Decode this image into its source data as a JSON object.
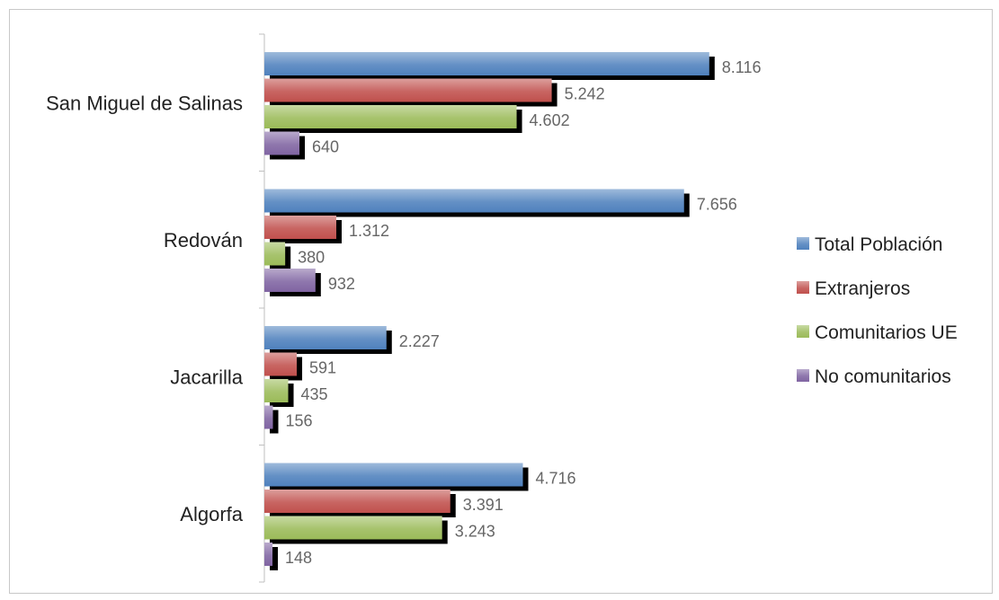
{
  "chart_data": {
    "type": "bar",
    "orientation": "horizontal",
    "categories": [
      "San Miguel de Salinas",
      "Redován",
      "Jacarilla",
      "Algorfa"
    ],
    "series": [
      {
        "name": "Total Población",
        "values": [
          8116,
          7656,
          2227,
          4716
        ],
        "labels": [
          "8.116",
          "7.656",
          "2.227",
          "4.716"
        ],
        "color": "#4f81bd"
      },
      {
        "name": "Extranjeros",
        "values": [
          5242,
          1312,
          591,
          3391
        ],
        "labels": [
          "5.242",
          "1.312",
          "591",
          "3.391"
        ],
        "color": "#c0504d"
      },
      {
        "name": "Comunitarios UE",
        "values": [
          4602,
          380,
          435,
          3243
        ],
        "labels": [
          "4.602",
          "380",
          "435",
          "3.243"
        ],
        "color": "#9bbb59"
      },
      {
        "name": "No comunitarios",
        "values": [
          640,
          932,
          156,
          148
        ],
        "labels": [
          "640",
          "932",
          "156",
          "148"
        ],
        "color": "#8064a2"
      }
    ],
    "xlim": [
      0,
      8300
    ],
    "grid": false,
    "legend": "right"
  }
}
